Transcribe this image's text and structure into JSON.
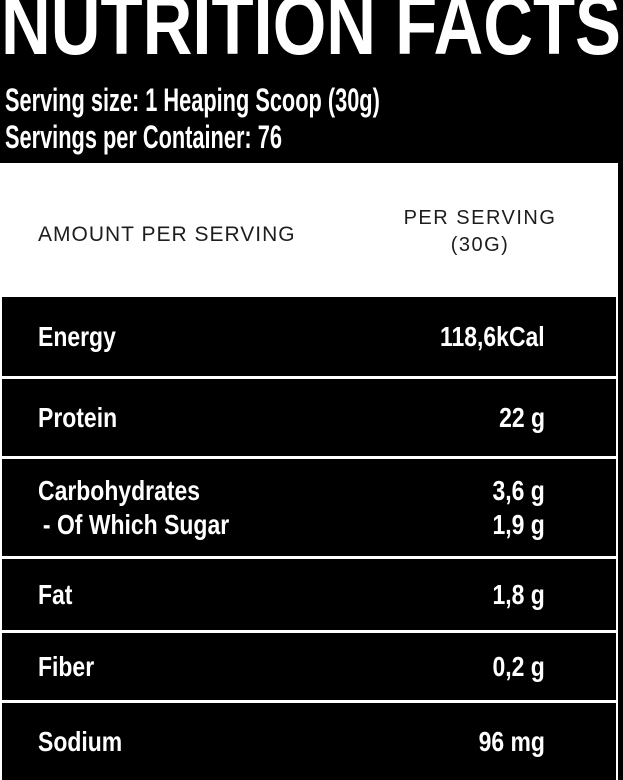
{
  "title": "NUTRITION FACTS",
  "serving_info": {
    "serving_size": "Serving size: 1 Heaping Scoop (30g)",
    "servings_per_container": "Servings per Container: 76"
  },
  "table": {
    "header": {
      "amount_label": "AMOUNT PER SERVING",
      "per_serving_line1": "PER SERVING",
      "per_serving_line2": "(30G)"
    },
    "rows": [
      {
        "label": "Energy",
        "value": "118,6kCal"
      },
      {
        "label": "Protein",
        "value": "22 g"
      },
      {
        "label": "Carbohydrates",
        "value": "3,6 g",
        "sub_label": "- Of Which Sugar",
        "sub_value": "1,9 g"
      },
      {
        "label": "Fat",
        "value": "1,8 g"
      },
      {
        "label": "Fiber",
        "value": "0,2 g"
      },
      {
        "label": "Sodium",
        "value": "96 mg"
      }
    ]
  },
  "colors": {
    "band_background": "#000000",
    "row_background": "#000000",
    "panel_background": "#ffffff",
    "text_on_dark": "#ffffff",
    "text_on_light": "#1d1d1b"
  }
}
